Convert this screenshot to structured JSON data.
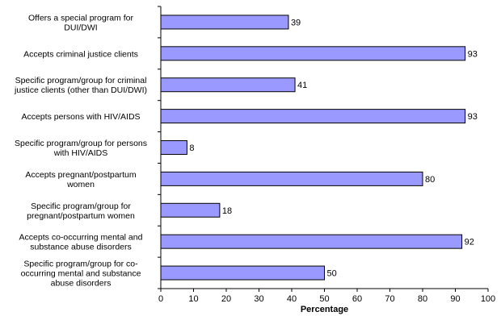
{
  "chart_data": {
    "type": "bar",
    "orientation": "horizontal",
    "categories": [
      [
        "Offers a special program for",
        "DUI/DWI"
      ],
      [
        "Accepts criminal justice clients"
      ],
      [
        "Specific program/group for criminal",
        "justice clients (other than DUI/DWI)"
      ],
      [
        "Accepts persons with HIV/AIDS"
      ],
      [
        "Specific program/group for persons",
        "with HIV/AIDS"
      ],
      [
        "Accepts pregnant/postpartum",
        "women"
      ],
      [
        "Specific program/group for",
        "pregnant/postpartum women"
      ],
      [
        "Accepts co-occurring mental and",
        "substance abuse disorders"
      ],
      [
        "Specific program/group for co-",
        "occurring mental and substance",
        "abuse disorders"
      ]
    ],
    "values": [
      39,
      93,
      41,
      93,
      8,
      80,
      18,
      92,
      50
    ],
    "xlabel": "Percentage",
    "xlim": [
      0,
      100
    ],
    "xticks": [
      0,
      10,
      20,
      30,
      40,
      50,
      60,
      70,
      80,
      90,
      100
    ],
    "bar_color": "#9999ff",
    "bar_edge_color": "#000000",
    "grid": false,
    "data_labels": true
  }
}
